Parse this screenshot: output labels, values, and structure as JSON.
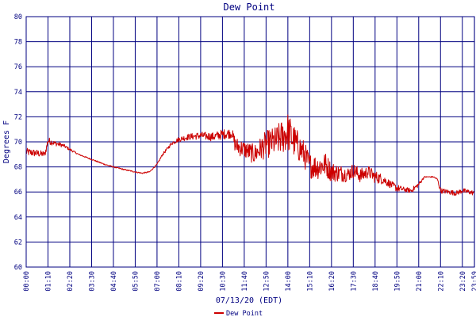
{
  "chart_data": {
    "type": "line",
    "title": "Dew Point",
    "xlabel": "07/13/20 (EDT)",
    "ylabel": "Degrees F",
    "ylim": [
      60,
      80
    ],
    "yticks": [
      "60",
      "62",
      "64",
      "66",
      "68",
      "70",
      "72",
      "74",
      "76",
      "78",
      "80"
    ],
    "xticks": [
      "00:00",
      "01:10",
      "02:20",
      "03:30",
      "04:40",
      "05:50",
      "07:00",
      "08:10",
      "09:20",
      "10:30",
      "11:40",
      "12:50",
      "14:00",
      "15:10",
      "16:20",
      "17:30",
      "18:40",
      "19:50",
      "21:00",
      "22:10",
      "23:20",
      "23:59"
    ],
    "grid": true,
    "legend_position": "bottom-center",
    "colors": {
      "series": "#cc0000",
      "grid": "#000080",
      "text": "#000080"
    },
    "series": [
      {
        "name": "Dew Point",
        "x_hours": [
          0,
          0.5,
          1.0,
          1.17,
          1.5,
          2.0,
          2.33,
          2.8,
          3.5,
          4.2,
          4.67,
          5.2,
          5.83,
          6.2,
          6.6,
          7.0,
          7.3,
          7.8,
          8.17,
          8.7,
          9.33,
          10.0,
          10.5,
          11.0,
          11.2,
          11.67,
          12.2,
          12.83,
          13.3,
          13.7,
          14.0,
          14.4,
          14.8,
          15.17,
          15.6,
          16.0,
          16.33,
          16.8,
          17.2,
          17.5,
          17.9,
          18.3,
          18.67,
          19.1,
          19.5,
          19.83,
          20.2,
          20.6,
          21.0,
          21.3,
          21.8,
          22.0,
          22.17,
          22.6,
          23.0,
          23.33,
          23.7,
          23.98
        ],
        "values": [
          69.2,
          69.1,
          69.0,
          70.1,
          69.9,
          69.7,
          69.4,
          69.0,
          68.6,
          68.2,
          68.0,
          67.8,
          67.6,
          67.5,
          67.6,
          68.2,
          69.0,
          69.9,
          70.2,
          70.4,
          70.5,
          70.4,
          70.6,
          70.7,
          69.7,
          69.4,
          69.0,
          69.8,
          70.0,
          70.4,
          70.8,
          69.9,
          69.2,
          68.1,
          68.0,
          68.2,
          67.6,
          67.5,
          67.4,
          67.7,
          67.3,
          67.6,
          67.2,
          67.0,
          66.6,
          66.3,
          66.2,
          66.1,
          66.6,
          67.2,
          67.2,
          67.0,
          66.1,
          66.0,
          65.9,
          66.1,
          66.0,
          65.9
        ],
        "noise": [
          0.3,
          0.3,
          0.25,
          0.3,
          0.2,
          0.15,
          0.1,
          0.05,
          0.05,
          0.05,
          0.05,
          0.05,
          0.05,
          0.05,
          0.05,
          0.05,
          0.1,
          0.15,
          0.2,
          0.25,
          0.3,
          0.35,
          0.4,
          0.4,
          0.7,
          0.7,
          0.8,
          1.1,
          1.2,
          1.4,
          1.6,
          1.3,
          1.1,
          1.0,
          1.0,
          1.0,
          0.8,
          0.7,
          0.6,
          0.6,
          0.6,
          0.5,
          0.5,
          0.4,
          0.3,
          0.3,
          0.2,
          0.2,
          0.2,
          0.05,
          0.05,
          0.1,
          0.2,
          0.2,
          0.2,
          0.2,
          0.2,
          0.2
        ]
      }
    ]
  }
}
